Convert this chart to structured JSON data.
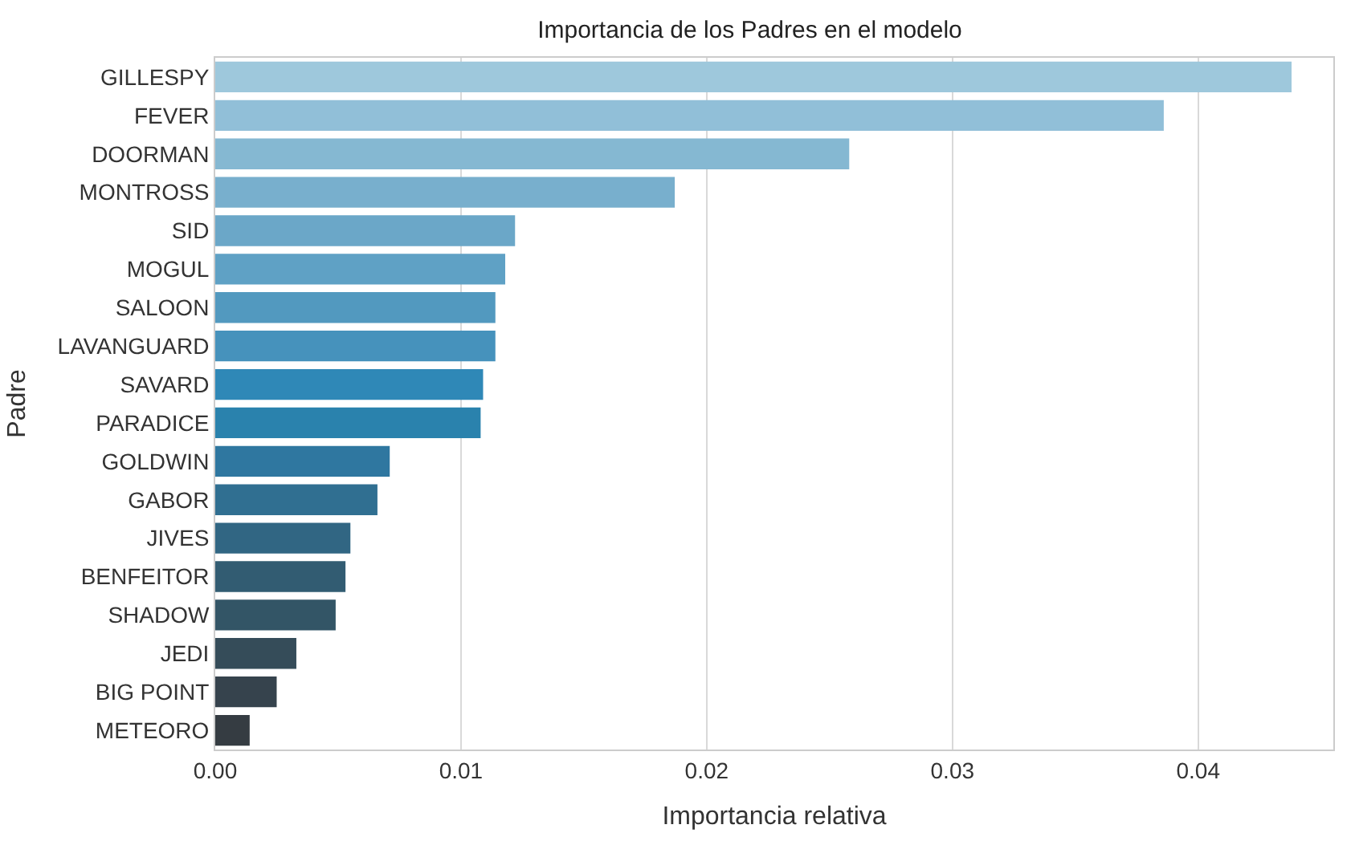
{
  "chart_data": {
    "type": "bar",
    "orientation": "horizontal",
    "title": "Importancia de los Padres en el modelo",
    "xlabel": "Importancia relativa",
    "ylabel": "Padre",
    "categories": [
      "GILLESPY",
      "FEVER",
      "DOORMAN",
      "MONTROSS",
      "SID",
      "MOGUL",
      "SALOON",
      "LAVANGUARD",
      "SAVARD",
      "PARADICE",
      "GOLDWIN",
      "GABOR",
      "JIVES",
      "BENFEITOR",
      "SHADOW",
      "JEDI",
      "BIG POINT",
      "METEORO"
    ],
    "values": [
      0.0438,
      0.0386,
      0.0258,
      0.0187,
      0.0122,
      0.0118,
      0.0114,
      0.0114,
      0.0109,
      0.0108,
      0.0071,
      0.0066,
      0.0055,
      0.0053,
      0.0049,
      0.0033,
      0.0025,
      0.0014
    ],
    "colors": [
      "#9ec8dc",
      "#91bfd8",
      "#85b8d2",
      "#78afcd",
      "#6ba7c8",
      "#5fa1c5",
      "#5299bf",
      "#4692bc",
      "#2f88b7",
      "#2a82ad",
      "#2f77a0",
      "#306f91",
      "#316683",
      "#325c72",
      "#335566",
      "#354c59",
      "#36434d",
      "#353c42"
    ],
    "xlim": [
      0,
      0.0455
    ],
    "xticks": [
      {
        "value": 0,
        "label": "0.00"
      },
      0.01,
      0.02,
      0.03,
      0.04
    ],
    "grid": "x"
  }
}
